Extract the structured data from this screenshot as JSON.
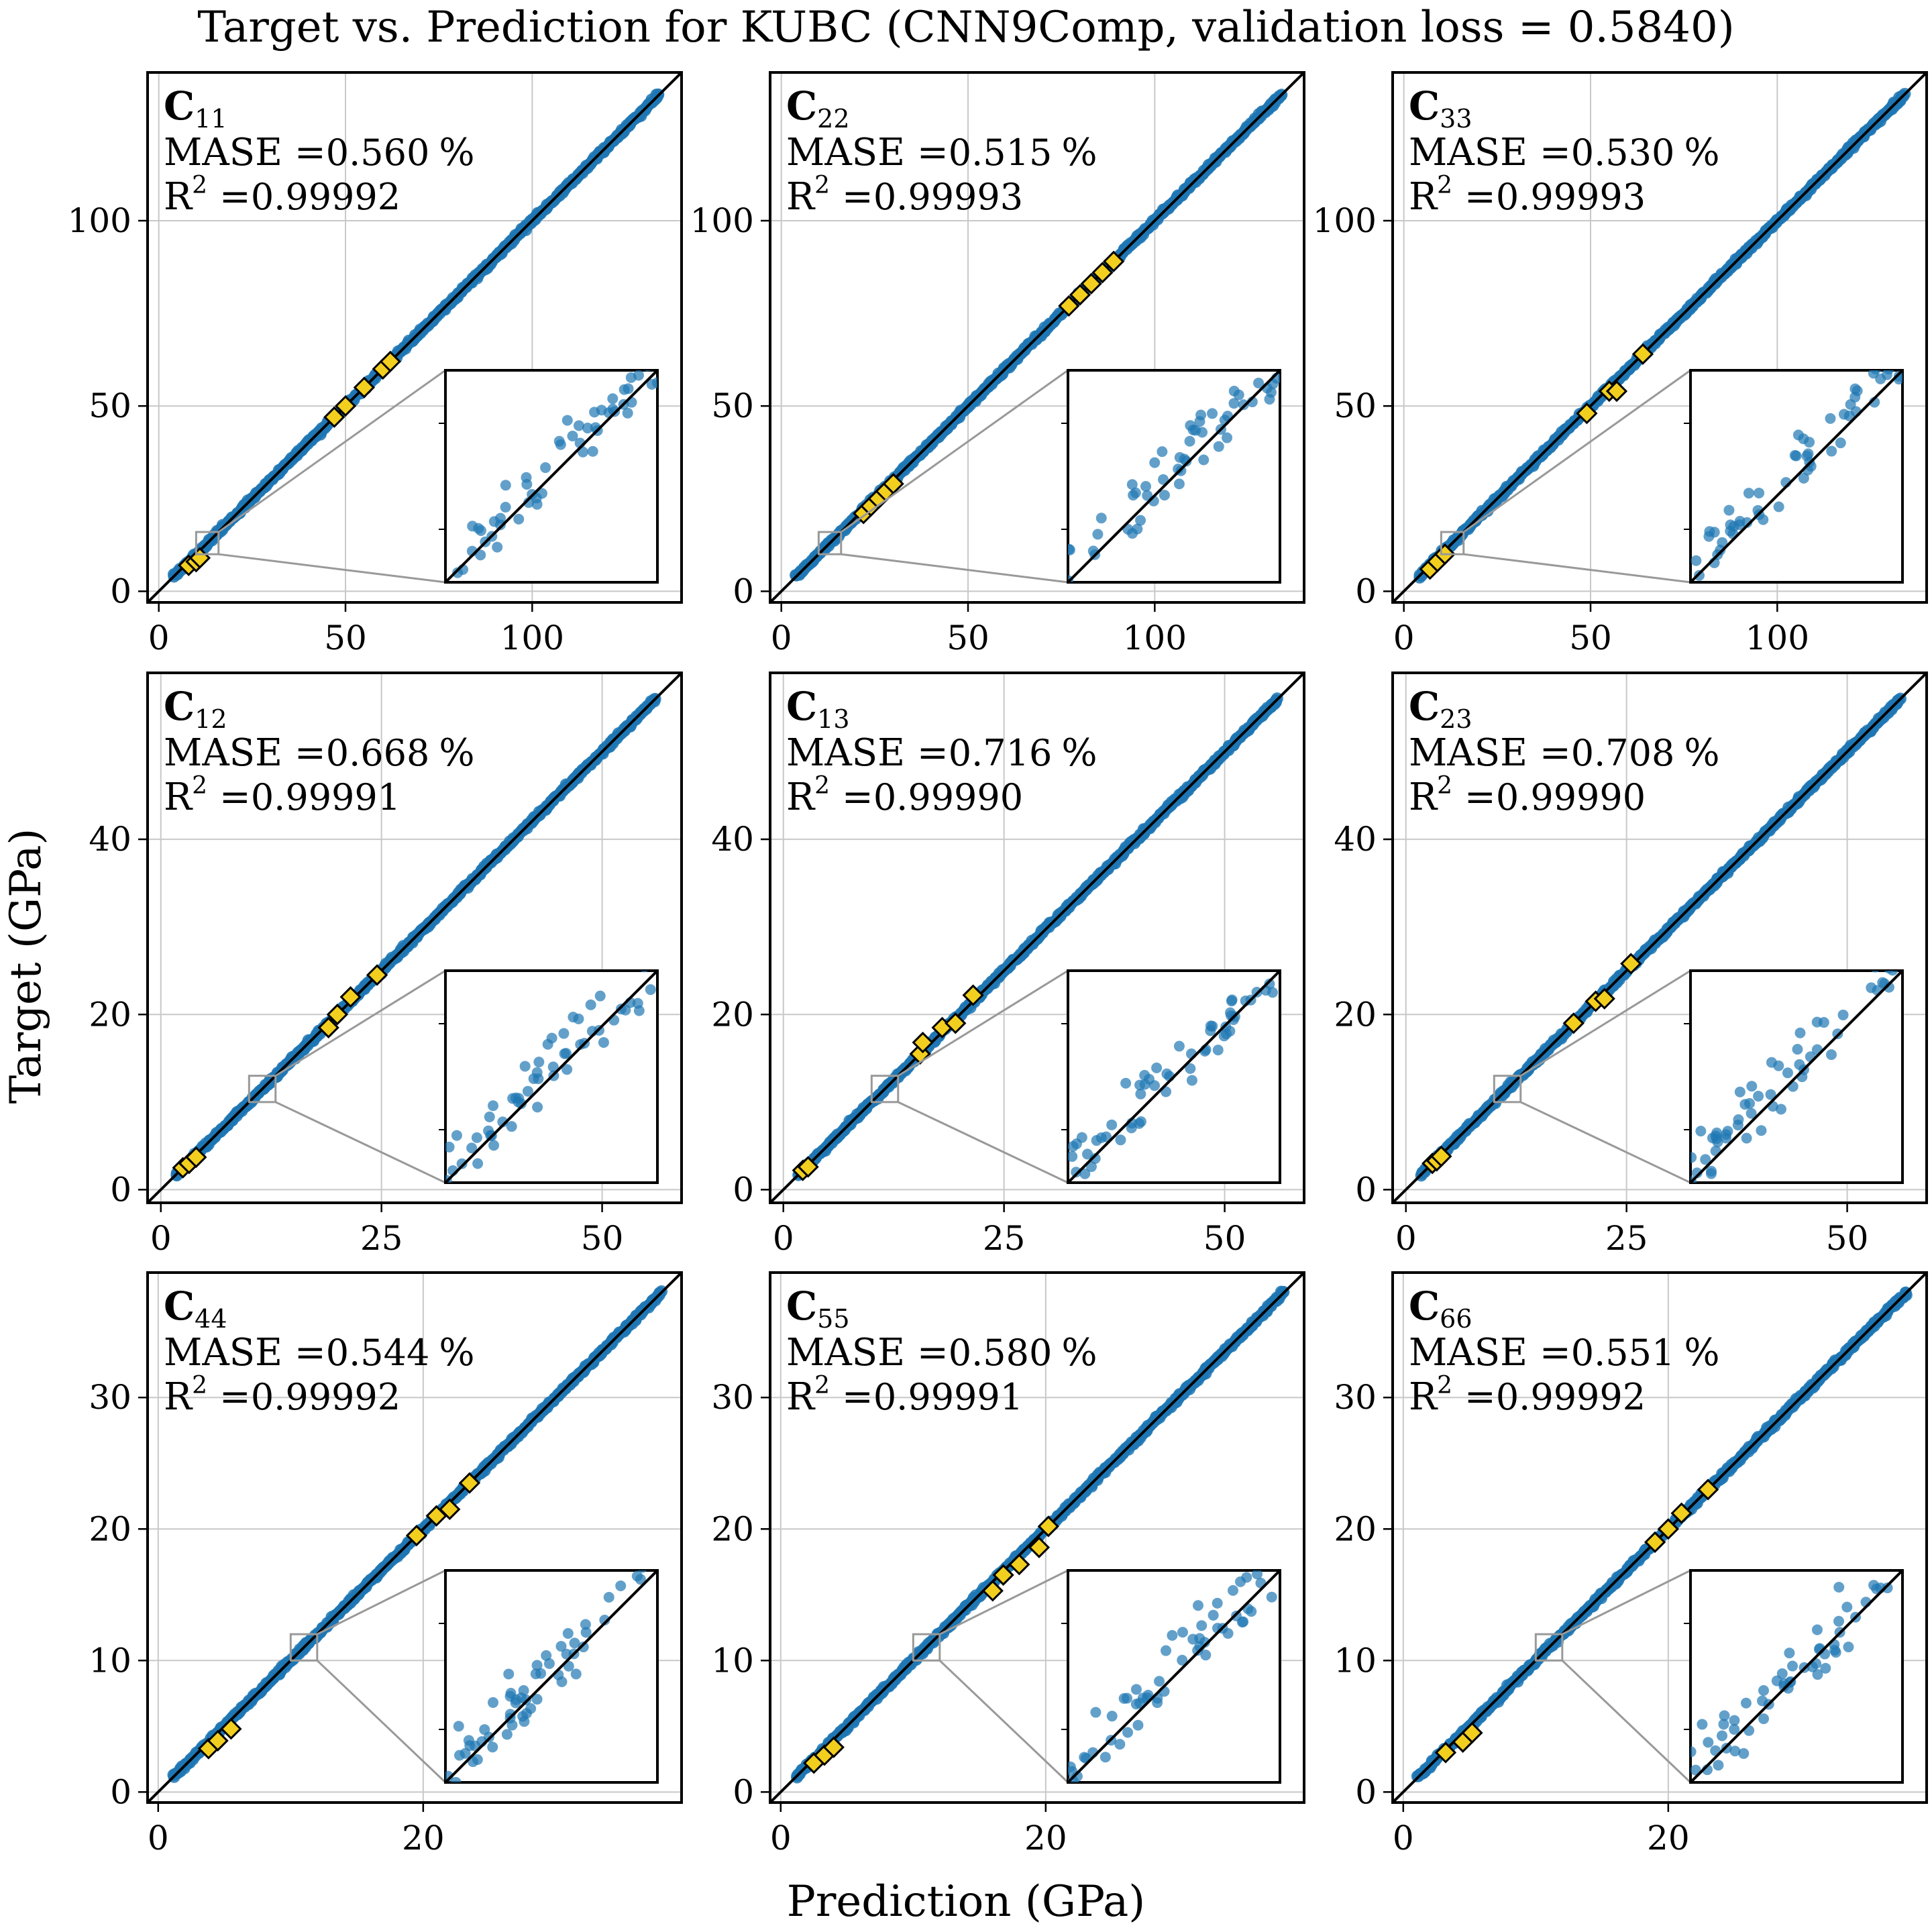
{
  "figure": {
    "title": "Target vs. Prediction for KUBC (CNN9Comp, validation loss = 0.5840)",
    "xlabel": "Prediction (GPa)",
    "ylabel": "Target (GPa)"
  },
  "colors": {
    "points": "#1f77b4",
    "highlight": "#f2cf1f",
    "identity_line": "#000000",
    "grid": "#c8c8c8",
    "inset_connector": "#999999"
  },
  "chart_data": [
    {
      "type": "scatter",
      "component": "C",
      "subscript": "11",
      "mase_label": "MASE =",
      "mase": "0.560",
      "mase_unit": "%",
      "r2_label": "R",
      "r2_sup": "2",
      "r2_eq": " =",
      "r2": "0.99992",
      "xlim": [
        -3,
        140
      ],
      "ylim": [
        -3,
        140
      ],
      "ticks": [
        0,
        50,
        100
      ],
      "tick_labels": [
        "0",
        "50",
        "100"
      ],
      "data_max": 134,
      "highlights": [
        [
          8,
          7
        ],
        [
          10,
          8
        ],
        [
          11,
          9
        ],
        [
          47,
          47
        ],
        [
          50,
          50
        ],
        [
          55,
          55
        ],
        [
          60,
          60
        ],
        [
          62,
          62
        ]
      ],
      "zoom": {
        "x": [
          10,
          16
        ],
        "y": [
          10,
          16
        ]
      }
    },
    {
      "type": "scatter",
      "component": "C",
      "subscript": "22",
      "mase_label": "MASE =",
      "mase": "0.515",
      "mase_unit": "%",
      "r2_label": "R",
      "r2_sup": "2",
      "r2_eq": " =",
      "r2": "0.99993",
      "xlim": [
        -3,
        140
      ],
      "ylim": [
        -3,
        140
      ],
      "ticks": [
        0,
        50,
        100
      ],
      "tick_labels": [
        "0",
        "50",
        "100"
      ],
      "data_max": 134,
      "highlights": [
        [
          22,
          21
        ],
        [
          24,
          23
        ],
        [
          26,
          25
        ],
        [
          28,
          27
        ],
        [
          30,
          29
        ],
        [
          77,
          77
        ],
        [
          80,
          80
        ],
        [
          83,
          83
        ],
        [
          86,
          86
        ],
        [
          89,
          89
        ]
      ],
      "zoom": {
        "x": [
          10,
          16
        ],
        "y": [
          10,
          16
        ]
      }
    },
    {
      "type": "scatter",
      "component": "C",
      "subscript": "33",
      "mase_label": "MASE =",
      "mase": "0.530",
      "mase_unit": "%",
      "r2_label": "R",
      "r2_sup": "2",
      "r2_eq": " =",
      "r2": "0.99993",
      "xlim": [
        -3,
        140
      ],
      "ylim": [
        -3,
        140
      ],
      "ticks": [
        0,
        50,
        100
      ],
      "tick_labels": [
        "0",
        "50",
        "100"
      ],
      "data_max": 134,
      "highlights": [
        [
          7,
          6
        ],
        [
          9,
          8
        ],
        [
          11,
          10
        ],
        [
          49,
          48
        ],
        [
          55,
          54
        ],
        [
          57,
          54
        ],
        [
          64,
          64
        ]
      ],
      "zoom": {
        "x": [
          10,
          16
        ],
        "y": [
          10,
          16
        ]
      }
    },
    {
      "type": "scatter",
      "component": "C",
      "subscript": "12",
      "mase_label": "MASE =",
      "mase": "0.668",
      "mase_unit": "%",
      "r2_label": "R",
      "r2_sup": "2",
      "r2_eq": " =",
      "r2": "0.99991",
      "xlim": [
        -1.5,
        59
      ],
      "ylim": [
        -1.5,
        59
      ],
      "ticks": [
        0,
        25,
        50
      ],
      "tick_labels": [
        "0",
        "25",
        "50"
      ],
      "y_ticks": [
        0,
        20,
        40
      ],
      "y_tick_labels": [
        "0",
        "20",
        "40"
      ],
      "data_max": 56,
      "highlights": [
        [
          2.5,
          2.5
        ],
        [
          3.2,
          3.0
        ],
        [
          4.0,
          3.7
        ],
        [
          19,
          18.5
        ],
        [
          20,
          20
        ],
        [
          21.5,
          22
        ],
        [
          24.5,
          24.5
        ]
      ],
      "zoom": {
        "x": [
          10,
          13
        ],
        "y": [
          10,
          13
        ]
      }
    },
    {
      "type": "scatter",
      "component": "C",
      "subscript": "13",
      "mase_label": "MASE =",
      "mase": "0.716",
      "mase_unit": "%",
      "r2_label": "R",
      "r2_sup": "2",
      "r2_eq": " =",
      "r2": "0.99990",
      "xlim": [
        -1.5,
        59
      ],
      "ylim": [
        -1.5,
        59
      ],
      "ticks": [
        0,
        25,
        50
      ],
      "tick_labels": [
        "0",
        "25",
        "50"
      ],
      "y_ticks": [
        0,
        20,
        40
      ],
      "y_tick_labels": [
        "0",
        "20",
        "40"
      ],
      "data_max": 56,
      "highlights": [
        [
          2.2,
          2.2
        ],
        [
          2.8,
          2.6
        ],
        [
          15.5,
          15.5
        ],
        [
          15.8,
          16.8
        ],
        [
          18,
          18.5
        ],
        [
          19.5,
          19
        ],
        [
          21.5,
          22.2
        ]
      ],
      "zoom": {
        "x": [
          10,
          13
        ],
        "y": [
          10,
          13
        ]
      }
    },
    {
      "type": "scatter",
      "component": "C",
      "subscript": "23",
      "mase_label": "MASE =",
      "mase": "0.708",
      "mase_unit": "%",
      "r2_label": "R",
      "r2_sup": "2",
      "r2_eq": " =",
      "r2": "0.99990",
      "xlim": [
        -1.5,
        59
      ],
      "ylim": [
        -1.5,
        59
      ],
      "ticks": [
        0,
        25,
        50
      ],
      "tick_labels": [
        "0",
        "25",
        "50"
      ],
      "y_ticks": [
        0,
        20,
        40
      ],
      "y_tick_labels": [
        "0",
        "20",
        "40"
      ],
      "data_max": 56,
      "highlights": [
        [
          3.0,
          3.0
        ],
        [
          3.5,
          3.3
        ],
        [
          4.0,
          3.8
        ],
        [
          19,
          19
        ],
        [
          21.5,
          21.5
        ],
        [
          22.5,
          21.8
        ],
        [
          25.5,
          25.8
        ]
      ],
      "zoom": {
        "x": [
          10,
          13
        ],
        "y": [
          10,
          13
        ]
      }
    },
    {
      "type": "scatter",
      "component": "C",
      "subscript": "44",
      "mase_label": "MASE =",
      "mase": "0.544",
      "mase_unit": "%",
      "r2_label": "R",
      "r2_sup": "2",
      "r2_eq": " =",
      "r2": "0.99992",
      "xlim": [
        -0.8,
        39.5
      ],
      "ylim": [
        -0.8,
        39.5
      ],
      "ticks": [
        0,
        20
      ],
      "tick_labels": [
        "0",
        "20"
      ],
      "y_ticks": [
        0,
        10,
        20,
        30
      ],
      "y_tick_labels": [
        "0",
        "10",
        "20",
        "30"
      ],
      "data_max": 38,
      "highlights": [
        [
          3.8,
          3.3
        ],
        [
          4.5,
          3.9
        ],
        [
          5.5,
          4.8
        ],
        [
          19.5,
          19.5
        ],
        [
          21,
          21
        ],
        [
          22,
          21.5
        ],
        [
          23.5,
          23.5
        ]
      ],
      "zoom": {
        "x": [
          10,
          12
        ],
        "y": [
          10,
          12
        ]
      }
    },
    {
      "type": "scatter",
      "component": "C",
      "subscript": "55",
      "mase_label": "MASE =",
      "mase": "0.580",
      "mase_unit": "%",
      "r2_label": "R",
      "r2_sup": "2",
      "r2_eq": " =",
      "r2": "0.99991",
      "xlim": [
        -0.8,
        39.5
      ],
      "ylim": [
        -0.8,
        39.5
      ],
      "ticks": [
        0,
        20
      ],
      "tick_labels": [
        "0",
        "20"
      ],
      "y_ticks": [
        0,
        10,
        20,
        30
      ],
      "y_tick_labels": [
        "0",
        "10",
        "20",
        "30"
      ],
      "data_max": 38,
      "highlights": [
        [
          2.5,
          2.2
        ],
        [
          3.3,
          2.8
        ],
        [
          4.0,
          3.4
        ],
        [
          16,
          15.3
        ],
        [
          16.8,
          16.5
        ],
        [
          18,
          17.3
        ],
        [
          19.5,
          18.6
        ],
        [
          20.2,
          20.2
        ]
      ],
      "zoom": {
        "x": [
          10,
          12
        ],
        "y": [
          10,
          12
        ]
      }
    },
    {
      "type": "scatter",
      "component": "C",
      "subscript": "66",
      "mase_label": "MASE =",
      "mase": "0.551",
      "mase_unit": "%",
      "r2_label": "R",
      "r2_sup": "2",
      "r2_eq": " =",
      "r2": "0.99992",
      "xlim": [
        -0.8,
        39.5
      ],
      "ylim": [
        -0.8,
        39.5
      ],
      "ticks": [
        0,
        20
      ],
      "tick_labels": [
        "0",
        "20"
      ],
      "y_ticks": [
        0,
        10,
        20,
        30
      ],
      "y_tick_labels": [
        "0",
        "10",
        "20",
        "30"
      ],
      "data_max": 38,
      "highlights": [
        [
          3.2,
          3.0
        ],
        [
          4.5,
          3.8
        ],
        [
          5.2,
          4.5
        ],
        [
          19,
          19
        ],
        [
          20,
          20
        ],
        [
          21,
          21.2
        ],
        [
          23,
          23
        ]
      ],
      "zoom": {
        "x": [
          10,
          12
        ],
        "y": [
          10,
          12
        ]
      }
    }
  ]
}
